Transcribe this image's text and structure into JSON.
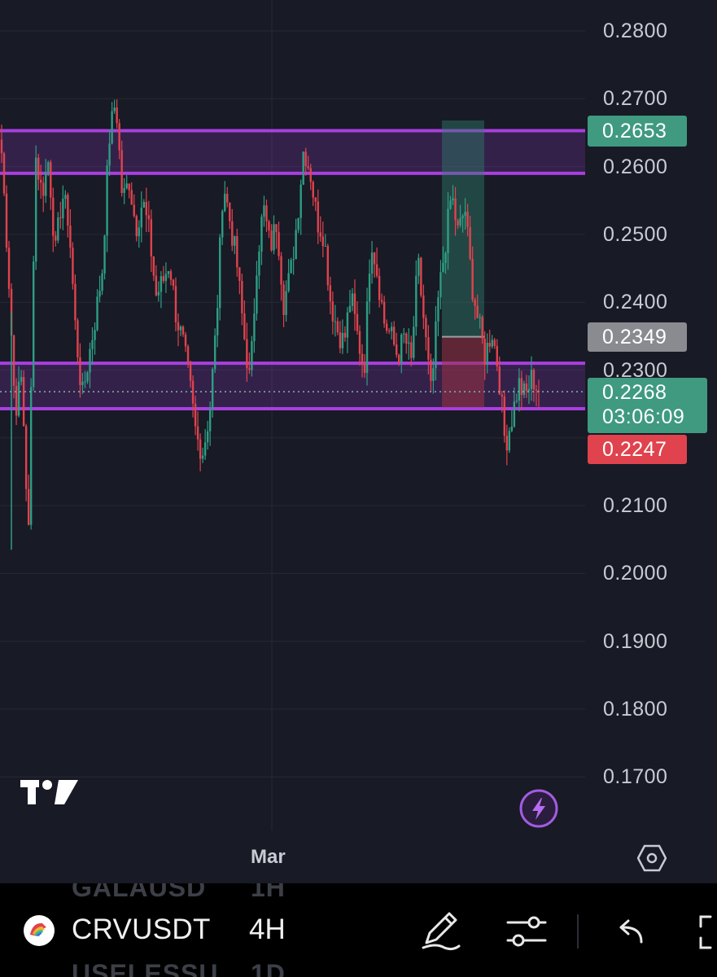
{
  "chart_data": {
    "type": "candlestick",
    "symbol": "CRVUSDT",
    "timeframe": "4H",
    "x_axis": {
      "labels": [
        "Mar"
      ]
    },
    "y_axis": {
      "ticks": [
        "0.2800",
        "0.2700",
        "0.2600",
        "0.2500",
        "0.2400",
        "0.2300",
        "0.2100",
        "0.2000",
        "0.1900",
        "0.1800",
        "0.1700"
      ],
      "range": [
        0.166,
        0.2845
      ]
    },
    "zones": [
      {
        "name": "resistance",
        "top": 0.2653,
        "bottom": 0.259,
        "color": "#9c3bd1"
      },
      {
        "name": "support",
        "top": 0.231,
        "bottom": 0.2243,
        "color": "#9c3bd1"
      }
    ],
    "position_tool": {
      "entry": 0.2349,
      "target": 0.2668,
      "stop": 0.2245,
      "profit_color": "#2e7d6b",
      "loss_color": "#9b3343"
    },
    "price_tags": {
      "zone_top": "0.2653",
      "mid": "0.2349",
      "current": "0.2268",
      "countdown": "03:06:09",
      "low": "0.2247"
    },
    "current_price": 0.2268,
    "price_path": [
      0.262,
      0.245,
      0.224,
      0.229,
      0.205,
      0.262,
      0.256,
      0.261,
      0.247,
      0.256,
      0.252,
      0.236,
      0.226,
      0.232,
      0.238,
      0.245,
      0.264,
      0.27,
      0.255,
      0.258,
      0.251,
      0.255,
      0.25,
      0.241,
      0.243,
      0.246,
      0.238,
      0.234,
      0.228,
      0.22,
      0.218,
      0.224,
      0.237,
      0.258,
      0.252,
      0.246,
      0.236,
      0.228,
      0.246,
      0.254,
      0.248,
      0.252,
      0.24,
      0.244,
      0.252,
      0.263,
      0.259,
      0.252,
      0.25,
      0.24,
      0.236,
      0.234,
      0.241,
      0.235,
      0.23,
      0.25,
      0.244,
      0.237,
      0.235,
      0.232,
      0.235,
      0.231,
      0.246,
      0.236,
      0.226,
      0.24,
      0.248,
      0.256,
      0.25,
      0.254,
      0.243,
      0.237,
      0.232,
      0.236,
      0.23,
      0.219,
      0.223,
      0.228,
      0.226,
      0.229,
      0.2268
    ],
    "up_color": "#2e9e83",
    "down_color": "#e0434e",
    "grid": true
  },
  "watermark_logo": "tradingview-logo",
  "bottom_bar": {
    "symbol": "CRVUSDT",
    "timeframe": "4H",
    "ghost_prev_symbol": "GALAUSD",
    "ghost_prev_timeframe": "1H",
    "ghost_next_symbol": "USELESSU",
    "ghost_next_timeframe": "1D",
    "icons": [
      "curve-logo-icon",
      "pencil-icon",
      "sliders-icon",
      "undo-icon",
      "fullscreen-icon"
    ]
  }
}
